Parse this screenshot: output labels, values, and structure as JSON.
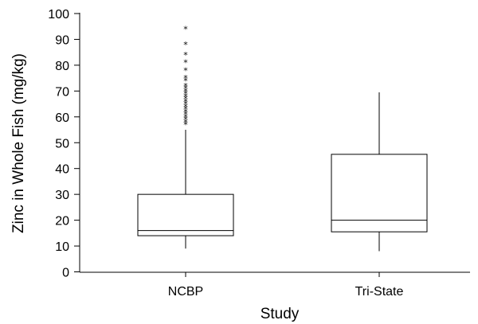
{
  "chart_data": {
    "type": "box",
    "xlabel": "Study",
    "ylabel": "Zinc in Whole Fish (mg/kg)",
    "ylim": [
      0,
      100
    ],
    "yticks": [
      0,
      10,
      20,
      30,
      40,
      50,
      60,
      70,
      80,
      90,
      100
    ],
    "categories": [
      "NCBP",
      "Tri-State"
    ],
    "boxes": [
      {
        "name": "NCBP",
        "whisker_low": 9,
        "q1": 14,
        "median": 16,
        "q3": 30,
        "whisker_high": 55,
        "outliers": [
          57,
          58,
          59,
          60,
          61,
          62,
          63,
          64,
          65,
          66,
          67,
          68,
          69,
          70,
          71,
          72,
          74,
          75,
          78,
          81,
          84,
          88,
          94
        ]
      },
      {
        "name": "Tri-State",
        "whisker_low": 8,
        "q1": 15.5,
        "median": 20,
        "q3": 45.5,
        "whisker_high": 69.5,
        "outliers": []
      }
    ],
    "grid": false,
    "legend": "none"
  },
  "colors": {
    "stroke": "#000000",
    "box_fill": "#ffffff"
  }
}
